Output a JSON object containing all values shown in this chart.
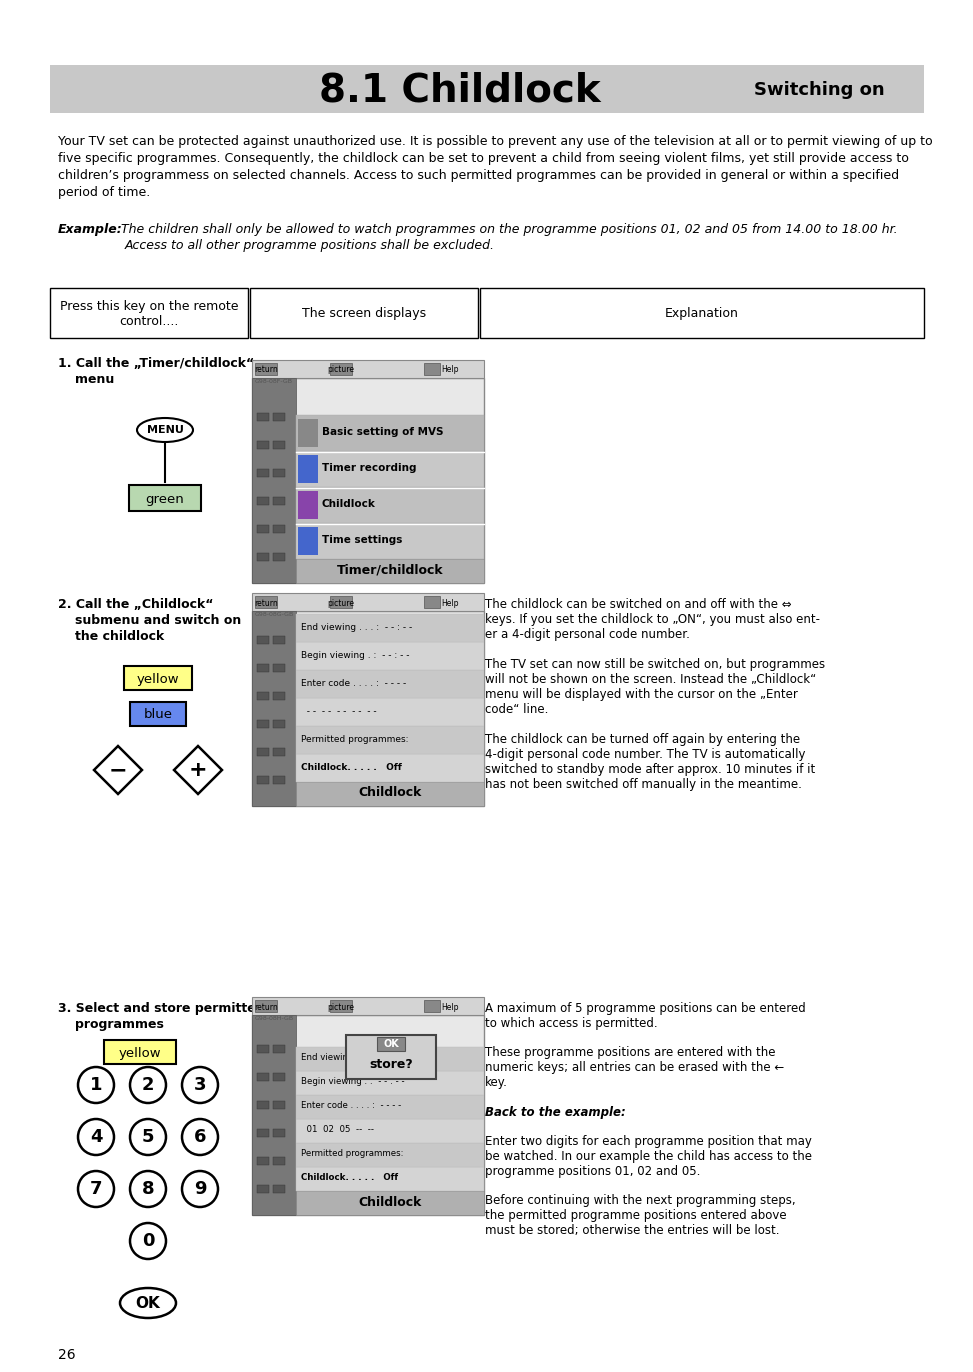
{
  "title": "8.1 Childlock",
  "subtitle_right": "Switching on",
  "header_bg": "#c8c8c8",
  "body_lines": [
    "Your TV set can be protected against unauthorized use. It is possible to prevent any use of the television at all or to permit viewing of up to",
    "five specific programmes. Consequently, the childlock can be set to prevent a child from seeing violent films, yet still provide access to",
    "children’s programmess on selected channels. Access to such permitted programmes can be provided in general or within a specified",
    "period of time."
  ],
  "example_line1": "The children shall only be allowed to watch programmes on the programme positions 01, 02 and 05 from 14.00 to 18.00 hr.",
  "example_line2": "Access to all other programme positions shall be excluded.",
  "col1_header": "Press this key on the remote\ncontrol....",
  "col2_header": "The screen displays",
  "col3_header": "Explanation",
  "step1_line1": "1. Call the „Timer/childlock“",
  "step1_line2": "   menu",
  "step2_line1": "2. Call the „Childlock“",
  "step2_line2": "   submenu and switch on",
  "step2_line3": "   the childlock",
  "step3_line1": "3. Select and store permitted",
  "step3_line2": "   programmes",
  "menu_items_1": [
    "Time settings",
    "Childlock",
    "Timer recording",
    "Basic setting of MVS"
  ],
  "menu_title_1": "Timer/childlock",
  "menu_title_2": "Childlock",
  "cl_items": [
    "Childlock. . . . .   Off",
    "Permitted programmes:",
    "  - -  - -  - -  - -  - -",
    "Enter code . . . . :  - - - -",
    "Begin viewing . :  - - : - -",
    "End viewing . . . :  - - : - -"
  ],
  "cl3_items_line1": [
    "Childlock. . . . .   Off",
    "Permitted programmes:",
    "  01  02  05  --  --",
    "Enter code . . . . :  - - - -",
    "Begin viewing . :  - - : - -",
    "End viewing . . . :  - - : - -"
  ],
  "exp2_lines": [
    "The childlock can be switched on and off with the ⇔",
    "keys. If you set the childlock to „ON“, you must also ent-",
    "er a 4-digit personal code number.",
    "",
    "The TV set can now still be switched on, but programmes",
    "will not be shown on the screen. Instead the „Childlock“",
    "menu will be displayed with the cursor on the „Enter",
    "code“ line.",
    "",
    "The childlock can be turned off again by entering the",
    "4-digit personal code number. The TV is automatically",
    "switched to standby mode after approx. 10 minutes if it",
    "has not been switched off manually in the meantime."
  ],
  "exp3_lines": [
    "A maximum of 5 programme positions can be entered",
    "to which access is permitted.",
    "",
    "These programme positions are entered with the",
    "numeric keys; all entries can be erased with the ←",
    "key.",
    "",
    "Back to the example:",
    "",
    "Enter two digits for each programme position that may",
    "be watched. In our example the child has access to the",
    "programme positions 01, 02 and 05.",
    "",
    "Before continuing with the next programming steps,",
    "the permitted programme positions entered above",
    "must be stored; otherwise the entries will be lost."
  ],
  "page_number": "26",
  "bg_color": "#ffffff"
}
